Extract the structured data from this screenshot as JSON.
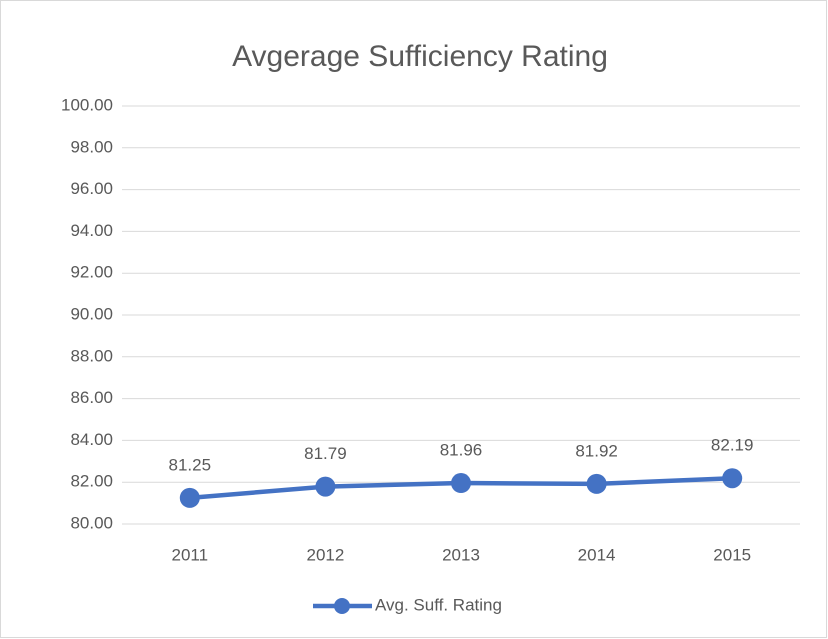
{
  "chart_data": {
    "type": "line",
    "title": "Avgerage Sufficiency Rating",
    "categories": [
      "2011",
      "2012",
      "2013",
      "2014",
      "2015"
    ],
    "series": [
      {
        "name": "Avg. Suff. Rating",
        "color": "#4472c4",
        "values": [
          81.25,
          81.79,
          81.96,
          81.92,
          82.19
        ]
      }
    ],
    "ylim": [
      80,
      100
    ],
    "yticks": [
      {
        "value": 80,
        "label": "80.00"
      },
      {
        "value": 82,
        "label": "82.00"
      },
      {
        "value": 84,
        "label": "84.00"
      },
      {
        "value": 86,
        "label": "86.00"
      },
      {
        "value": 88,
        "label": "88.00"
      },
      {
        "value": 90,
        "label": "90.00"
      },
      {
        "value": 92,
        "label": "92.00"
      },
      {
        "value": 94,
        "label": "94.00"
      },
      {
        "value": 96,
        "label": "96.00"
      },
      {
        "value": 98,
        "label": "98.00"
      },
      {
        "value": 100,
        "label": "100.00"
      }
    ],
    "grid": true,
    "legend": "bottom",
    "data_labels": true
  }
}
